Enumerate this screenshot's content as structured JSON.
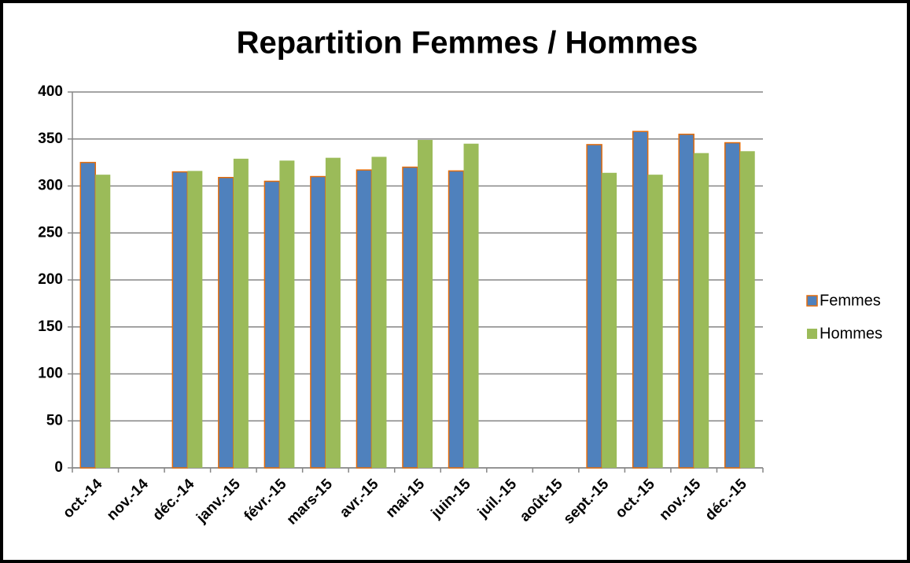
{
  "chart_data": {
    "type": "bar",
    "title": "Repartition Femmes / Hommes",
    "categories": [
      "oct.-14",
      "nov.-14",
      "déc.-14",
      "janv.-15",
      "févr.-15",
      "mars-15",
      "avr.-15",
      "mai-15",
      "juin-15",
      "juil.-15",
      "août-15",
      "sept.-15",
      "oct.-15",
      "nov.-15",
      "déc.-15"
    ],
    "series": [
      {
        "name": "Femmes",
        "color": "#4f81bd",
        "edgecolor": "#e46c0a",
        "values": [
          325,
          null,
          315,
          309,
          305,
          310,
          317,
          320,
          316,
          null,
          null,
          344,
          358,
          355,
          346
        ]
      },
      {
        "name": "Hommes",
        "color": "#9bbb59",
        "values": [
          312,
          null,
          316,
          329,
          327,
          330,
          331,
          349,
          345,
          null,
          null,
          314,
          312,
          335,
          337
        ]
      }
    ],
    "ylim": [
      0,
      400
    ],
    "yticks": [
      0,
      50,
      100,
      150,
      200,
      250,
      300,
      350,
      400
    ],
    "grid": true,
    "legend": "right"
  }
}
